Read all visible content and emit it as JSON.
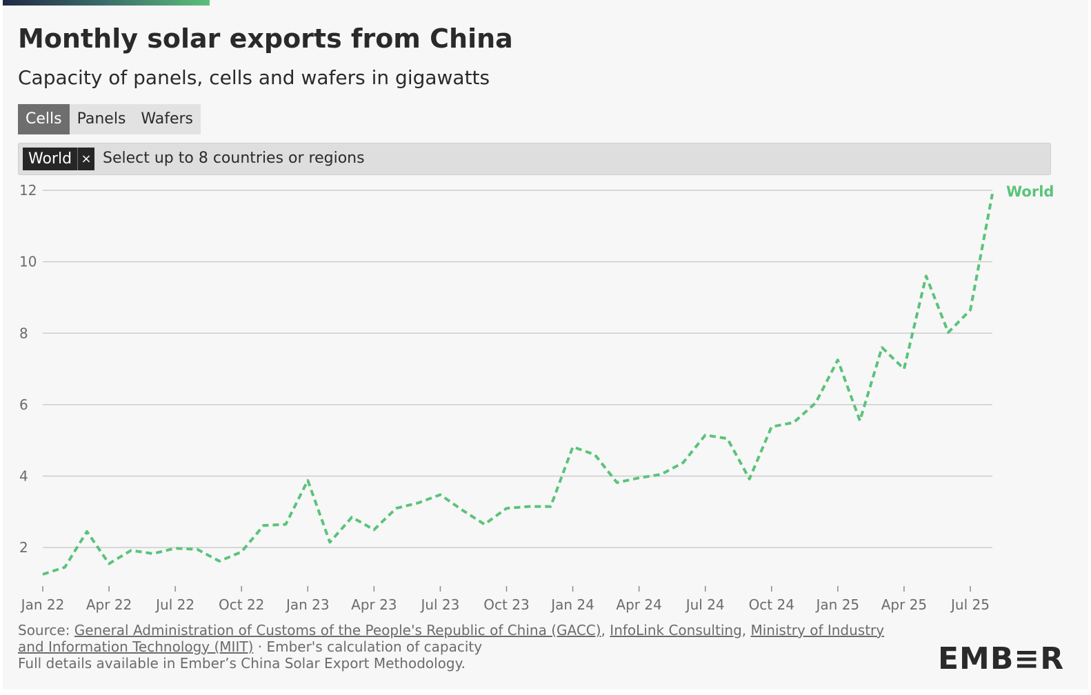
{
  "header": {
    "title": "Monthly solar exports from China",
    "subtitle": "Capacity of panels, cells and wafers in gigawatts"
  },
  "tabs": [
    {
      "label": "Cells",
      "active": true
    },
    {
      "label": "Panels",
      "active": false
    },
    {
      "label": "Wafers",
      "active": false
    }
  ],
  "selector": {
    "chip_label": "World",
    "chip_remove_icon": "close-icon",
    "remove_glyph": "×",
    "placeholder": "Select up to 8 countries or regions"
  },
  "colors": {
    "series": "#5bc37a",
    "grid": "#cccccc",
    "axis_text": "#6b6b6b"
  },
  "chart_data": {
    "type": "line",
    "title": "Monthly solar exports from China",
    "subtitle": "Capacity of panels, cells and wafers in gigawatts",
    "xlabel": "",
    "ylabel": "",
    "ylim": [
      1,
      12
    ],
    "yticks": [
      2,
      4,
      6,
      8,
      10,
      12
    ],
    "grid": true,
    "x": [
      "Jan 22",
      "Feb 22",
      "Mar 22",
      "Apr 22",
      "May 22",
      "Jun 22",
      "Jul 22",
      "Aug 22",
      "Sep 22",
      "Oct 22",
      "Nov 22",
      "Dec 22",
      "Jan 23",
      "Feb 23",
      "Mar 23",
      "Apr 23",
      "May 23",
      "Jun 23",
      "Jul 23",
      "Aug 23",
      "Sep 23",
      "Oct 23",
      "Nov 23",
      "Dec 23",
      "Jan 24",
      "Feb 24",
      "Mar 24",
      "Apr 24",
      "May 24",
      "Jun 24",
      "Jul 24",
      "Aug 24",
      "Sep 24",
      "Oct 24",
      "Nov 24",
      "Dec 24",
      "Jan 25",
      "Feb 25",
      "Mar 25",
      "Apr 25",
      "May 25",
      "Jun 25",
      "Jul 25",
      "Aug 25"
    ],
    "x_tick_labels": [
      "Jan 22",
      "Apr 22",
      "Jul 22",
      "Oct 22",
      "Jan 23",
      "Apr 23",
      "Jul 23",
      "Oct 23",
      "Jan 24",
      "Apr 24",
      "Jul 24",
      "Oct 24",
      "Jan 25",
      "Apr 25",
      "Jul 25"
    ],
    "series": [
      {
        "name": "World",
        "style": "dashed",
        "values": [
          1.25,
          1.45,
          2.45,
          1.55,
          1.92,
          1.83,
          1.98,
          1.95,
          1.62,
          1.88,
          2.62,
          2.65,
          3.88,
          2.15,
          2.85,
          2.5,
          3.1,
          3.25,
          3.48,
          3.05,
          2.65,
          3.1,
          3.15,
          3.15,
          4.82,
          4.6,
          3.82,
          3.95,
          4.05,
          4.38,
          5.15,
          5.05,
          3.92,
          5.38,
          5.5,
          6.05,
          7.25,
          5.55,
          7.6,
          7.0,
          9.6,
          8.02,
          8.65,
          11.9
        ]
      }
    ]
  },
  "footer": {
    "source_prefix": "Source: ",
    "source_links": [
      "General Administration of Customs of the People's Republic of China (GACC)",
      "InfoLink Consulting",
      "Ministry of Industry and Information Technology (MIIT)"
    ],
    "separator": ", ",
    "source_suffix": " · Ember's calculation of capacity",
    "details": "Full details available in Ember’s China Solar Export Methodology.",
    "logo": "EMB≡R"
  }
}
